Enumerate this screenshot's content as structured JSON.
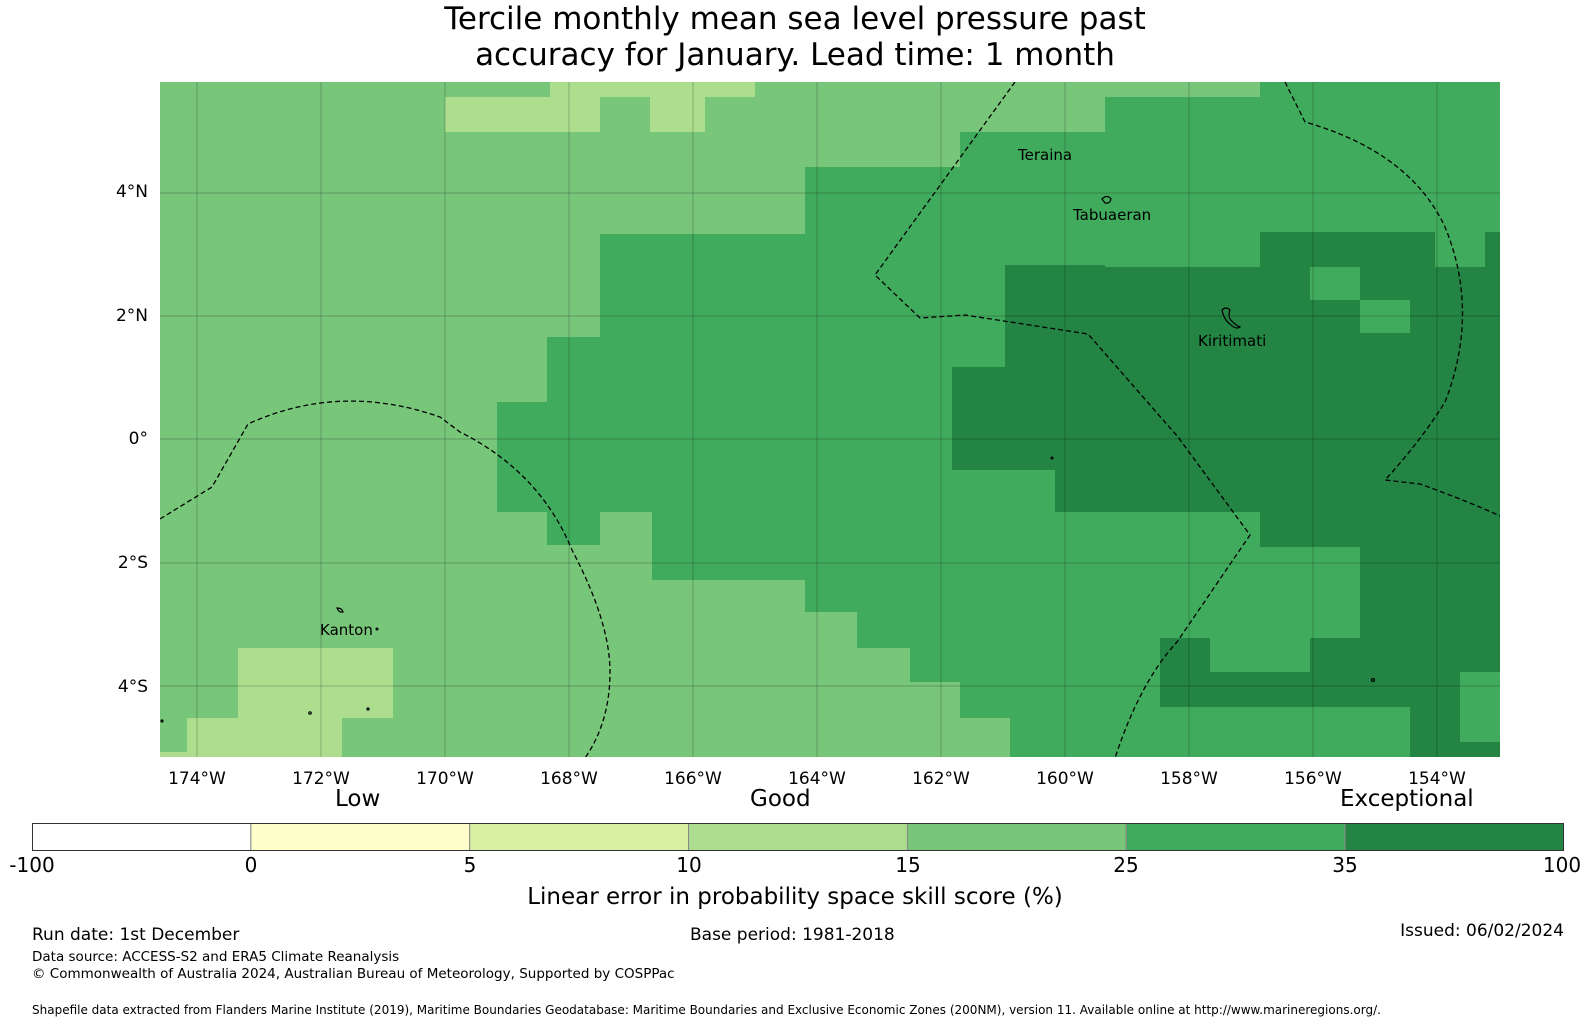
{
  "title": {
    "line1": "Tercile monthly mean sea level pressure past",
    "line2": "accuracy for January. Lead time: 1 month"
  },
  "map": {
    "lat_ticks": [
      "4°N",
      "2°N",
      "0°",
      "2°S",
      "4°S"
    ],
    "lon_ticks": [
      "174°W",
      "172°W",
      "170°W",
      "168°W",
      "166°W",
      "164°W",
      "162°W",
      "160°W",
      "158°W",
      "156°W",
      "154°W"
    ],
    "places": {
      "teraina": "Teraina",
      "tabuaeran": "Tabuaeran",
      "kiritimati": "Kiritimati",
      "kanton": "Kanton"
    },
    "colors": {
      "lvl10": "#acde8e",
      "lvl15": "#78c679",
      "lvl25": "#41ab5d",
      "lvl35": "#238443"
    }
  },
  "colorbar": {
    "categories": {
      "low": "Low",
      "good": "Good",
      "exceptional": "Exceptional"
    },
    "tick_labels": [
      "-100",
      "0",
      "5",
      "10",
      "15",
      "25",
      "35",
      "100"
    ],
    "colors": [
      "#ffffff",
      "#ffffcc",
      "#d9f0a3",
      "#addd8e",
      "#78c679",
      "#41ab5d",
      "#238443"
    ],
    "label": "Linear error in probability space skill score (%)"
  },
  "footer": {
    "run_date": "Run date: 1st December",
    "base_period": "Base period: 1981-2018",
    "issued": "Issued: 06/02/2024",
    "data_source": "Data source: ACCESS-S2 and ERA5 Climate Reanalysis",
    "copyright": "© Commonwealth of Australia 2024, Australian Bureau of Meteorology, Supported by COSPPac",
    "shapefile": "Shapefile data extracted from Flanders Marine Institute (2019), Maritime Boundaries Geodatabase: Maritime Boundaries and Exclusive Economic Zones (200NM), version 11. Available online at http://www.marineregions.org/."
  }
}
